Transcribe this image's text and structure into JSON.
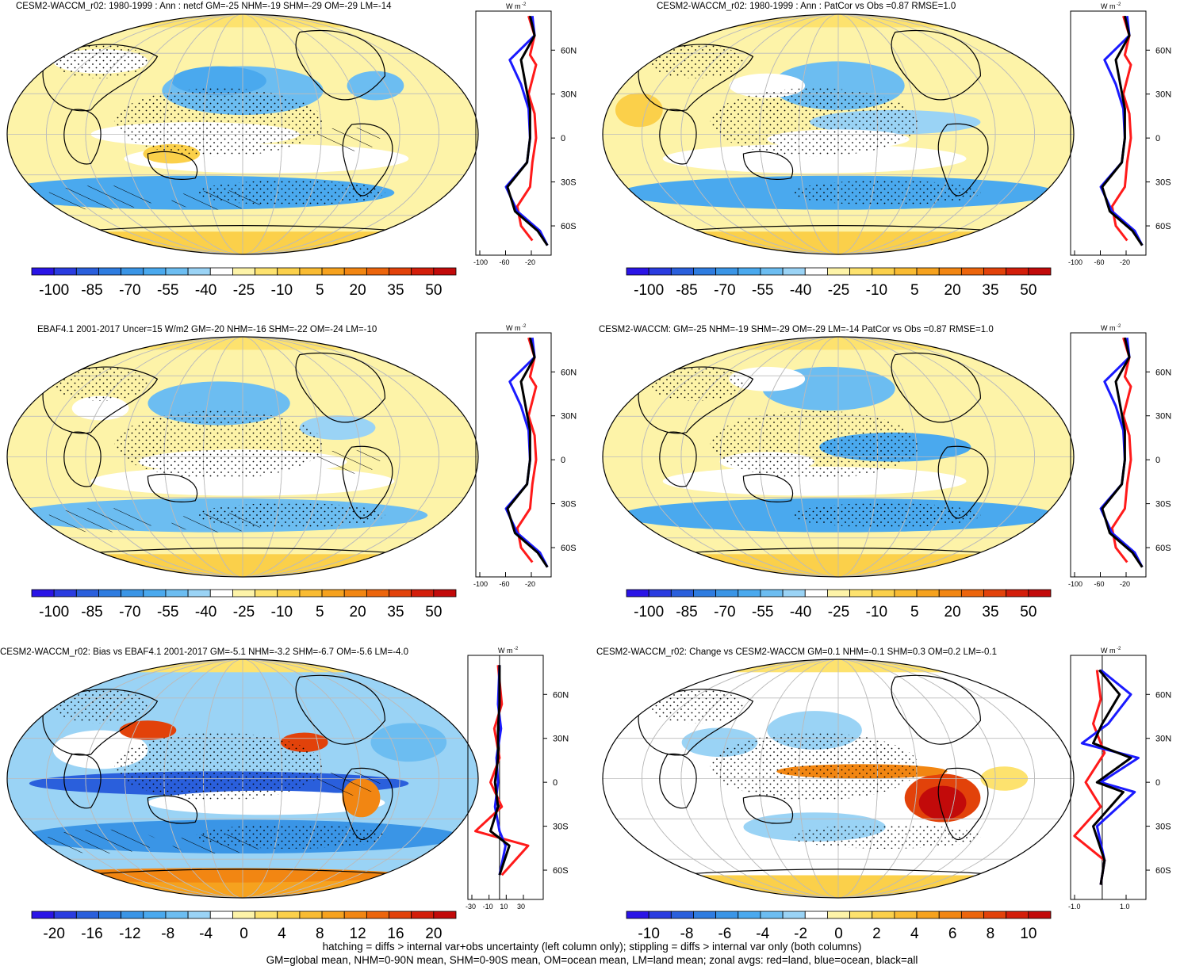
{
  "panels": [
    {
      "title": "CESM2-WACCM_r02: 1980-1999 : Ann : netcf GM=-25 NHM=-19 SHM=-29 OM=-29 LM=-14",
      "units": "W m",
      "lat_labels": [
        "60N",
        "30N",
        "0",
        "30S",
        "60S"
      ],
      "x_ticks": [
        "-100",
        "-60",
        "-20"
      ],
      "colorbar_labels": [
        "-100",
        "-85",
        "-70",
        "-55",
        "-40",
        "-25",
        "-10",
        "5",
        "20",
        "35",
        "50"
      ],
      "hatched": true
    },
    {
      "title": "CESM2-WACCM_r02: 1980-1999 : Ann : PatCor vs Obs =0.87 RMSE=1.0",
      "units": "W m",
      "lat_labels": [
        "60N",
        "30N",
        "0",
        "30S",
        "60S"
      ],
      "x_ticks": [
        "-100",
        "-60",
        "-20"
      ],
      "colorbar_labels": [
        "-100",
        "-85",
        "-70",
        "-55",
        "-40",
        "-25",
        "-10",
        "5",
        "20",
        "35",
        "50"
      ],
      "hatched": false
    },
    {
      "title": "EBAF4.1 2001-2017 Uncer=15 W/m2 GM=-20 NHM=-16 SHM=-22 OM=-24 LM=-10",
      "units": "W m",
      "lat_labels": [
        "60N",
        "30N",
        "0",
        "30S",
        "60S"
      ],
      "x_ticks": [
        "-100",
        "-60",
        "-20"
      ],
      "colorbar_labels": [
        "-100",
        "-85",
        "-70",
        "-55",
        "-40",
        "-25",
        "-10",
        "5",
        "20",
        "35",
        "50"
      ],
      "hatched": true
    },
    {
      "title": "CESM2-WACCM: GM=-25 NHM=-19 SHM=-29 OM=-29 LM=-14 PatCor vs Obs =0.87 RMSE=1.0",
      "units": "W m",
      "lat_labels": [
        "60N",
        "30N",
        "0",
        "30S",
        "60S"
      ],
      "x_ticks": [
        "-100",
        "-60",
        "-20"
      ],
      "colorbar_labels": [
        "-100",
        "-85",
        "-70",
        "-55",
        "-40",
        "-25",
        "-10",
        "5",
        "20",
        "35",
        "50"
      ],
      "hatched": false
    },
    {
      "title": "CESM2-WACCM_r02: Bias vs EBAF4.1 2001-2017 GM=-5.1 NHM=-3.2 SHM=-6.7 OM=-5.6 LM=-4.0",
      "units": "W m",
      "lat_labels": [
        "60N",
        "30N",
        "0",
        "30S",
        "60S"
      ],
      "x_ticks": [
        "-30",
        "-10",
        "10",
        "30"
      ],
      "colorbar_labels": [
        "-20",
        "-16",
        "-12",
        "-8",
        "-4",
        "0",
        "4",
        "8",
        "12",
        "16",
        "20"
      ],
      "hatched": true
    },
    {
      "title": "CESM2-WACCM_r02: Change vs CESM2-WACCM GM=0.1 NHM=-0.1 SHM=0.3 OM=0.2 LM=-0.1",
      "units": "W m",
      "lat_labels": [
        "60N",
        "30N",
        "0",
        "30S",
        "60S"
      ],
      "x_ticks": [
        "-1.0",
        "1.0"
      ],
      "colorbar_labels": [
        "-10",
        "-8",
        "-6",
        "-4",
        "-2",
        "0",
        "2",
        "4",
        "6",
        "8",
        "10"
      ],
      "hatched": false
    }
  ],
  "footer": {
    "line1": "hatching = diffs > internal var+obs uncertainty (left column only); stippling = diffs > internal var only (both columns)",
    "line2": "GM=global mean, NHM=0-90N mean, SHM=0-90S mean, OM=ocean mean, LM=land mean; zonal avgs: red=land, blue=ocean, black=all"
  },
  "colors": {
    "diverging": [
      "#2a14e6",
      "#2a3ce0",
      "#2a5fdc",
      "#2e7ce0",
      "#3a95e6",
      "#4aa9ee",
      "#6cbdf1",
      "#9ad3f5",
      "#ffffff",
      "#fdf3a8",
      "#fde26e",
      "#fbd04a",
      "#f9bb32",
      "#f6a21e",
      "#f28612",
      "#ec650c",
      "#e2420a",
      "#d31e0a",
      "#c20a0a"
    ],
    "land_line": "#ff1a1a",
    "ocean_line": "#1a1aff",
    "all_line": "#000000"
  }
}
